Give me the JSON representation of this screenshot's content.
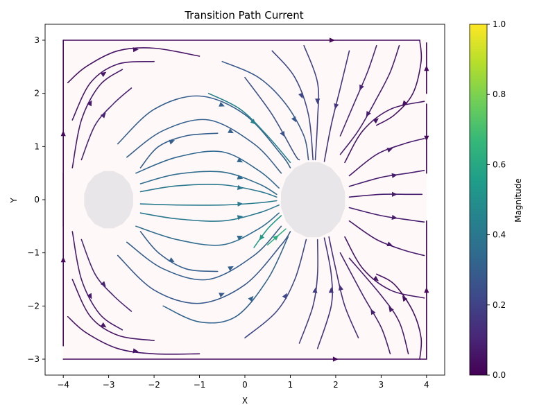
{
  "chart_data": {
    "type": "streamplot",
    "title": "Transition Path Current",
    "xlabel": "X",
    "ylabel": "Y",
    "xlim": [
      -4.4,
      4.4
    ],
    "ylim": [
      -3.3,
      3.3
    ],
    "xticks": [
      -4,
      -3,
      -2,
      -1,
      0,
      1,
      2,
      3,
      4
    ],
    "xtick_labels": [
      "−4",
      "−3",
      "−2",
      "−1",
      "0",
      "1",
      "2",
      "3",
      "4"
    ],
    "yticks": [
      -3,
      -2,
      -1,
      0,
      1,
      2,
      3
    ],
    "ytick_labels": [
      "−3",
      "−2",
      "−1",
      "0",
      "1",
      "2",
      "3"
    ],
    "grid": false,
    "colorbar": {
      "label": "Magnitude",
      "colormap": "viridis",
      "range": [
        0.0,
        1.0
      ],
      "ticks": [
        0.0,
        0.2,
        0.4,
        0.6,
        0.8,
        1.0
      ],
      "tick_labels": [
        "0.0",
        "0.2",
        "0.4",
        "0.6",
        "0.8",
        "1.0"
      ]
    },
    "domain_region": {
      "x": [
        -4,
        4
      ],
      "y": [
        -3,
        3
      ],
      "color": "#fff8f8"
    },
    "excluded_regions": [
      {
        "name": "left-basin",
        "center": [
          -3.0,
          0.0
        ],
        "radius": 0.55,
        "color": "#e8e6e8"
      },
      {
        "name": "right-basin",
        "center": [
          1.5,
          0.0
        ],
        "radius": 0.72,
        "color": "#e8e6e8"
      }
    ],
    "streamlines": [
      {
        "points": [
          [
            -2.3,
            0.3
          ],
          [
            -1.5,
            0.48
          ],
          [
            -0.5,
            0.52
          ],
          [
            0.3,
            0.3
          ],
          [
            0.7,
            0.1
          ]
        ],
        "magnitude": 0.35
      },
      {
        "points": [
          [
            -2.3,
            0.15
          ],
          [
            -1.5,
            0.26
          ],
          [
            -0.5,
            0.28
          ],
          [
            0.3,
            0.16
          ],
          [
            0.7,
            0.05
          ]
        ],
        "magnitude": 0.4
      },
      {
        "points": [
          [
            -2.3,
            -0.08
          ],
          [
            -1.5,
            -0.1
          ],
          [
            -0.5,
            -0.1
          ],
          [
            0.3,
            -0.06
          ],
          [
            0.7,
            -0.02
          ]
        ],
        "magnitude": 0.42
      },
      {
        "points": [
          [
            -2.3,
            -0.25
          ],
          [
            -1.5,
            -0.36
          ],
          [
            -0.5,
            -0.4
          ],
          [
            0.3,
            -0.25
          ],
          [
            0.75,
            -0.1
          ]
        ],
        "magnitude": 0.4
      },
      {
        "points": [
          [
            -2.4,
            0.5
          ],
          [
            -1.5,
            0.8
          ],
          [
            -0.5,
            0.9
          ],
          [
            0.3,
            0.55
          ],
          [
            0.75,
            0.22
          ]
        ],
        "magnitude": 0.33
      },
      {
        "points": [
          [
            -2.4,
            -0.5
          ],
          [
            -1.5,
            -0.75
          ],
          [
            -0.5,
            -0.85
          ],
          [
            0.3,
            -0.55
          ],
          [
            0.75,
            -0.25
          ]
        ],
        "magnitude": 0.35
      },
      {
        "points": [
          [
            -2.6,
            0.8
          ],
          [
            -1.8,
            1.3
          ],
          [
            -0.8,
            1.5
          ],
          [
            0.2,
            1.05
          ],
          [
            0.8,
            0.5
          ]
        ],
        "magnitude": 0.3
      },
      {
        "points": [
          [
            -2.6,
            -0.8
          ],
          [
            -1.8,
            -1.3
          ],
          [
            -0.8,
            -1.5
          ],
          [
            0.2,
            -1.05
          ],
          [
            0.8,
            -0.5
          ]
        ],
        "magnitude": 0.3
      },
      {
        "points": [
          [
            -2.8,
            1.05
          ],
          [
            -2.0,
            1.7
          ],
          [
            -1.0,
            1.95
          ],
          [
            0.0,
            1.6
          ],
          [
            0.8,
            0.85
          ],
          [
            1.0,
            0.6
          ]
        ],
        "magnitude": 0.3
      },
      {
        "points": [
          [
            -2.8,
            -1.05
          ],
          [
            -2.0,
            -1.7
          ],
          [
            -1.0,
            -1.95
          ],
          [
            0.0,
            -1.6
          ],
          [
            0.8,
            -0.85
          ],
          [
            1.0,
            -0.6
          ]
        ],
        "magnitude": 0.28
      },
      {
        "points": [
          [
            -1.8,
            -2.0
          ],
          [
            -1.0,
            -2.3
          ],
          [
            -0.2,
            -2.2
          ],
          [
            0.5,
            -1.5
          ],
          [
            0.95,
            -0.7
          ]
        ],
        "magnitude": 0.32
      },
      {
        "points": [
          [
            -0.8,
            2.0
          ],
          [
            -0.1,
            1.7
          ],
          [
            0.5,
            1.2
          ],
          [
            1.0,
            0.7
          ]
        ],
        "magnitude": 0.45
      },
      {
        "points": [
          [
            0.0,
            2.3
          ],
          [
            0.6,
            1.6
          ],
          [
            1.1,
            0.85
          ],
          [
            1.2,
            0.75
          ]
        ],
        "magnitude": 0.25
      },
      {
        "points": [
          [
            0.5,
            -0.85
          ],
          [
            0.9,
            -0.55
          ]
        ],
        "magnitude": 0.62
      },
      {
        "points": [
          [
            0.8,
            -0.3
          ],
          [
            0.5,
            -0.55
          ],
          [
            0.2,
            -0.9
          ]
        ],
        "magnitude": 0.55
      },
      {
        "points": [
          [
            -0.5,
            2.6
          ],
          [
            0.3,
            2.3
          ],
          [
            0.9,
            1.8
          ],
          [
            1.3,
            1.2
          ],
          [
            1.4,
            0.75
          ]
        ],
        "magnitude": 0.28
      },
      {
        "points": [
          [
            0.6,
            2.8
          ],
          [
            1.1,
            2.3
          ],
          [
            1.4,
            1.6
          ],
          [
            1.5,
            0.75
          ]
        ],
        "magnitude": 0.22
      },
      {
        "points": [
          [
            1.3,
            2.9
          ],
          [
            1.6,
            2.2
          ],
          [
            1.6,
            1.5
          ],
          [
            1.55,
            0.75
          ]
        ],
        "magnitude": 0.2
      },
      {
        "points": [
          [
            2.3,
            2.8
          ],
          [
            2.1,
            2.1
          ],
          [
            1.9,
            1.4
          ],
          [
            1.75,
            0.72
          ]
        ],
        "magnitude": 0.15
      },
      {
        "points": [
          [
            0.0,
            -2.6
          ],
          [
            0.7,
            -2.1
          ],
          [
            1.1,
            -1.5
          ],
          [
            1.35,
            -0.75
          ]
        ],
        "magnitude": 0.22
      },
      {
        "points": [
          [
            1.2,
            -2.7
          ],
          [
            1.5,
            -2.0
          ],
          [
            1.6,
            -1.4
          ],
          [
            1.6,
            -0.75
          ]
        ],
        "magnitude": 0.18
      },
      {
        "points": [
          [
            1.6,
            -2.8
          ],
          [
            1.9,
            -2.0
          ],
          [
            1.9,
            -1.4
          ],
          [
            1.75,
            -0.72
          ]
        ],
        "magnitude": 0.15
      },
      {
        "points": [
          [
            2.5,
            -2.6
          ],
          [
            2.2,
            -2.0
          ],
          [
            2.0,
            -1.3
          ],
          [
            1.85,
            -0.7
          ]
        ],
        "magnitude": 0.13
      },
      {
        "points": [
          [
            2.3,
            0.05
          ],
          [
            3.0,
            0.1
          ],
          [
            3.6,
            0.1
          ],
          [
            3.9,
            0.1
          ]
        ],
        "magnitude": 0.08
      },
      {
        "points": [
          [
            2.3,
            0.25
          ],
          [
            3.0,
            0.42
          ],
          [
            3.6,
            0.5
          ],
          [
            3.95,
            0.55
          ]
        ],
        "magnitude": 0.08
      },
      {
        "points": [
          [
            2.3,
            -0.15
          ],
          [
            3.0,
            -0.3
          ],
          [
            3.6,
            -0.38
          ],
          [
            3.95,
            -0.42
          ]
        ],
        "magnitude": 0.08
      },
      {
        "points": [
          [
            2.3,
            0.45
          ],
          [
            2.9,
            0.85
          ],
          [
            3.5,
            1.05
          ],
          [
            3.95,
            1.15
          ]
        ],
        "magnitude": 0.07
      },
      {
        "points": [
          [
            2.3,
            -0.4
          ],
          [
            2.9,
            -0.75
          ],
          [
            3.5,
            -0.95
          ],
          [
            3.95,
            -1.05
          ]
        ],
        "magnitude": 0.07
      },
      {
        "points": [
          [
            2.2,
            0.7
          ],
          [
            2.6,
            1.3
          ],
          [
            3.2,
            1.7
          ],
          [
            3.95,
            1.85
          ]
        ],
        "magnitude": 0.06
      },
      {
        "points": [
          [
            2.2,
            -0.7
          ],
          [
            2.6,
            -1.3
          ],
          [
            3.2,
            -1.7
          ],
          [
            3.95,
            -1.85
          ]
        ],
        "magnitude": 0.06
      },
      {
        "points": [
          [
            2.9,
            2.9
          ],
          [
            2.7,
            2.4
          ],
          [
            2.4,
            1.8
          ],
          [
            2.1,
            1.2
          ]
        ],
        "magnitude": 0.1
      },
      {
        "points": [
          [
            3.4,
            2.9
          ],
          [
            3.2,
            2.4
          ],
          [
            2.9,
            1.9
          ],
          [
            2.5,
            1.3
          ],
          [
            2.1,
            0.85
          ]
        ],
        "magnitude": 0.08
      },
      {
        "points": [
          [
            3.2,
            -2.9
          ],
          [
            3.0,
            -2.4
          ],
          [
            2.6,
            -1.8
          ],
          [
            2.1,
            -1.0
          ]
        ],
        "magnitude": 0.09
      },
      {
        "points": [
          [
            3.6,
            -2.9
          ],
          [
            3.4,
            -2.3
          ],
          [
            3.0,
            -1.8
          ],
          [
            2.3,
            -1.1
          ]
        ],
        "magnitude": 0.07
      },
      {
        "points": [
          [
            -3.9,
            2.2
          ],
          [
            -3.5,
            2.5
          ],
          [
            -2.8,
            2.8
          ],
          [
            -2.0,
            2.85
          ],
          [
            -1.0,
            2.7
          ]
        ],
        "magnitude": 0.05
      },
      {
        "points": [
          [
            -3.8,
            1.5
          ],
          [
            -3.4,
            2.2
          ],
          [
            -2.8,
            2.55
          ],
          [
            -2.0,
            2.6
          ]
        ],
        "magnitude": 0.06
      },
      {
        "points": [
          [
            -3.8,
            0.6
          ],
          [
            -3.6,
            1.5
          ],
          [
            -3.2,
            2.15
          ],
          [
            -2.7,
            2.45
          ]
        ],
        "magnitude": 0.07
      },
      {
        "points": [
          [
            -3.6,
            0.75
          ],
          [
            -3.3,
            1.4
          ],
          [
            -2.9,
            1.8
          ],
          [
            -2.5,
            2.1
          ]
        ],
        "magnitude": 0.1
      },
      {
        "points": [
          [
            -3.9,
            -2.2
          ],
          [
            -3.5,
            -2.5
          ],
          [
            -2.8,
            -2.8
          ],
          [
            -2.0,
            -2.9
          ],
          [
            -1.0,
            -2.9
          ]
        ],
        "magnitude": 0.05
      },
      {
        "points": [
          [
            -3.8,
            -1.5
          ],
          [
            -3.4,
            -2.2
          ],
          [
            -2.8,
            -2.55
          ],
          [
            -2.0,
            -2.65
          ]
        ],
        "magnitude": 0.06
      },
      {
        "points": [
          [
            -3.8,
            -0.6
          ],
          [
            -3.6,
            -1.5
          ],
          [
            -3.2,
            -2.15
          ],
          [
            -2.7,
            -2.45
          ]
        ],
        "magnitude": 0.07
      },
      {
        "points": [
          [
            -3.6,
            -0.75
          ],
          [
            -3.3,
            -1.4
          ],
          [
            -2.9,
            -1.8
          ],
          [
            -2.5,
            -2.1
          ]
        ],
        "magnitude": 0.1
      },
      {
        "points": [
          [
            -2.3,
            -0.6
          ],
          [
            -1.9,
            -1.0
          ],
          [
            -1.3,
            -1.3
          ],
          [
            -0.6,
            -1.35
          ]
        ],
        "magnitude": 0.3
      },
      {
        "points": [
          [
            -2.3,
            0.6
          ],
          [
            -1.9,
            1.0
          ],
          [
            -1.3,
            1.2
          ],
          [
            -0.6,
            1.25
          ]
        ],
        "magnitude": 0.3
      },
      {
        "points": [
          [
            -4.0,
            -3.0
          ],
          [
            0.0,
            -3.0
          ],
          [
            4.0,
            -3.0
          ]
        ],
        "magnitude": 0.02
      },
      {
        "points": [
          [
            -4.0,
            3.0
          ],
          [
            0.0,
            3.0
          ],
          [
            3.85,
            3.0
          ]
        ],
        "magnitude": 0.02
      },
      {
        "points": [
          [
            -4.0,
            -2.75
          ],
          [
            -4.0,
            0.5
          ]
        ],
        "magnitude": 0.02
      },
      {
        "points": [
          [
            -4.0,
            -0.5
          ],
          [
            -4.0,
            3.0
          ]
        ],
        "magnitude": 0.02
      },
      {
        "points": [
          [
            4.0,
            -3.0
          ],
          [
            4.0,
            -0.4
          ]
        ],
        "magnitude": 0.02
      },
      {
        "points": [
          [
            4.0,
            1.8
          ],
          [
            4.0,
            0.5
          ]
        ],
        "magnitude": 0.02
      },
      {
        "points": [
          [
            4.0,
            2.0
          ],
          [
            4.0,
            2.95
          ]
        ],
        "magnitude": 0.02
      },
      {
        "points": [
          [
            3.85,
            3.0
          ],
          [
            3.88,
            2.6
          ],
          [
            3.7,
            2.0
          ],
          [
            3.3,
            1.6
          ],
          [
            2.9,
            1.4
          ]
        ],
        "magnitude": 0.04
      },
      {
        "points": [
          [
            3.85,
            -3.0
          ],
          [
            3.88,
            -2.6
          ],
          [
            3.7,
            -2.1
          ],
          [
            3.3,
            -1.6
          ],
          [
            2.9,
            -1.4
          ]
        ],
        "magnitude": 0.04
      }
    ]
  }
}
